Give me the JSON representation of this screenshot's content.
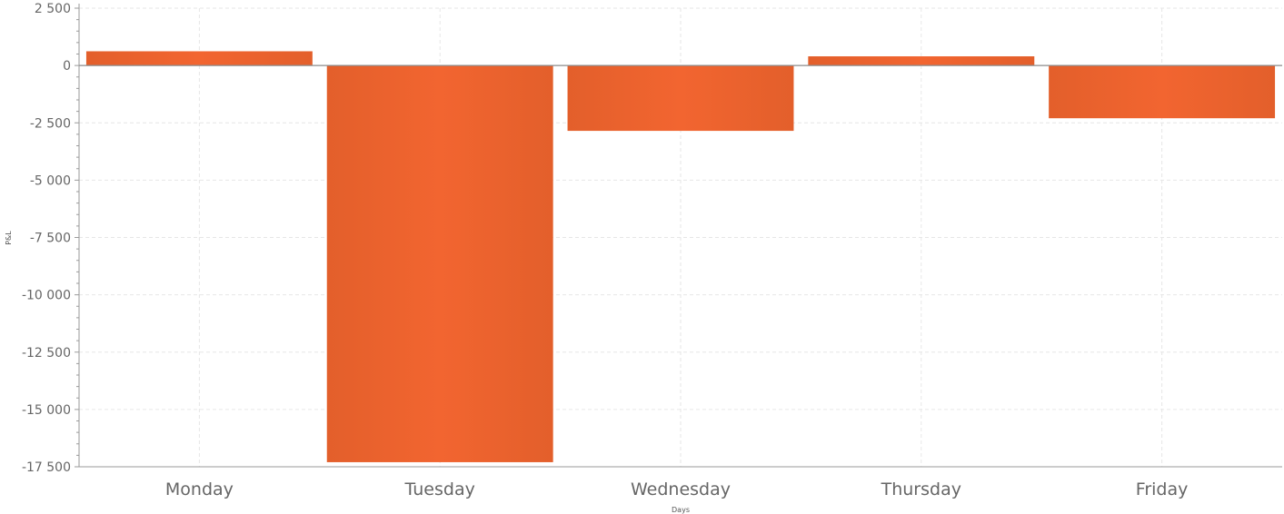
{
  "chart_data": {
    "type": "bar",
    "categories": [
      "Monday",
      "Tuesday",
      "Wednesday",
      "Thursday",
      "Friday"
    ],
    "series": [
      {
        "values": [
          620,
          -17300,
          -2850,
          400,
          -2300
        ]
      }
    ],
    "xlabel": "Days",
    "ylabel": "P&L",
    "ylim": [
      -17500,
      2500
    ],
    "yticks": [
      2500,
      0,
      -2500,
      -5000,
      -7500,
      -10000,
      -12500,
      -15000,
      -17500
    ],
    "ytick_labels": [
      "2 500",
      "0",
      "-2 500",
      "-5 000",
      "-7 500",
      "-10 000",
      "-12 500",
      "-15 000",
      "-17 500"
    ],
    "grid": true,
    "colors": {
      "bar_edge": "#E35F2B",
      "bar_center": "#F26530",
      "grid": "#E6E6E6",
      "axis": "#9A9A9A",
      "zero_line": "#8C8C8C"
    }
  }
}
